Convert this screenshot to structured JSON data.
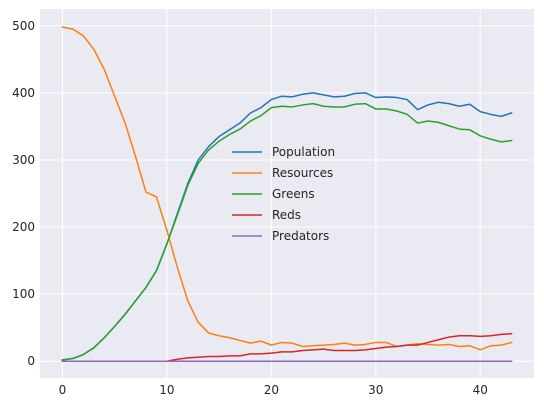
{
  "chart_data": {
    "type": "line",
    "title": "",
    "xlabel": "",
    "ylabel": "",
    "xlim": [
      -2.15,
      45.15
    ],
    "ylim": [
      -25,
      525
    ],
    "grid": true,
    "legend_position": "center",
    "x_ticks": [
      0,
      10,
      20,
      30,
      40
    ],
    "y_ticks": [
      0,
      100,
      200,
      300,
      400,
      500
    ],
    "x": [
      0,
      1,
      2,
      3,
      4,
      5,
      6,
      7,
      8,
      9,
      10,
      11,
      12,
      13,
      14,
      15,
      16,
      17,
      18,
      19,
      20,
      21,
      22,
      23,
      24,
      25,
      26,
      27,
      28,
      29,
      30,
      31,
      32,
      33,
      34,
      35,
      36,
      37,
      38,
      39,
      40,
      41,
      42,
      43
    ],
    "series": [
      {
        "name": "Population",
        "color": "#1f77b4",
        "values": [
          2,
          4,
          10,
          20,
          35,
          52,
          70,
          90,
          110,
          135,
          175,
          220,
          265,
          300,
          320,
          335,
          345,
          355,
          370,
          378,
          390,
          395,
          394,
          398,
          400,
          397,
          394,
          395,
          399,
          400,
          393,
          394,
          393,
          390,
          375,
          382,
          386,
          384,
          380,
          383,
          372,
          368,
          365,
          370
        ]
      },
      {
        "name": "Resources",
        "color": "#ff7f0e",
        "values": [
          498,
          495,
          485,
          465,
          435,
          395,
          355,
          305,
          252,
          245,
          195,
          140,
          90,
          58,
          42,
          38,
          35,
          31,
          27,
          30,
          24,
          28,
          27,
          22,
          23,
          24,
          25,
          27,
          24,
          25,
          28,
          28,
          22,
          24,
          26,
          25,
          24,
          25,
          22,
          23,
          17,
          23,
          24,
          28
        ]
      },
      {
        "name": "Greens",
        "color": "#2ca02c",
        "values": [
          2,
          4,
          10,
          20,
          35,
          52,
          70,
          90,
          110,
          135,
          175,
          218,
          262,
          295,
          315,
          328,
          338,
          346,
          358,
          366,
          378,
          380,
          379,
          382,
          384,
          380,
          379,
          379,
          383,
          384,
          376,
          376,
          373,
          368,
          355,
          358,
          356,
          351,
          346,
          345,
          336,
          331,
          327,
          329
        ]
      },
      {
        "name": "Reds",
        "color": "#d62728",
        "values": [
          0,
          0,
          0,
          0,
          0,
          0,
          0,
          0,
          0,
          0,
          0,
          3,
          5,
          6,
          7,
          7,
          8,
          8,
          11,
          11,
          12,
          14,
          14,
          16,
          17,
          18,
          16,
          16,
          16,
          17,
          19,
          21,
          22,
          24,
          24,
          28,
          32,
          36,
          38,
          38,
          37,
          38,
          40,
          41
        ]
      },
      {
        "name": "Predators",
        "color": "#9467bd",
        "values": [
          0,
          0,
          0,
          0,
          0,
          0,
          0,
          0,
          0,
          0,
          0,
          0,
          0,
          0,
          0,
          0,
          0,
          0,
          0,
          0,
          0,
          0,
          0,
          0,
          0,
          0,
          0,
          0,
          0,
          0,
          0,
          0,
          0,
          0,
          0,
          0,
          0,
          0,
          0,
          0,
          0,
          0,
          0,
          0
        ]
      }
    ]
  },
  "style": {
    "plot_background": "#eaeaf2",
    "grid_color": "#ffffff"
  }
}
